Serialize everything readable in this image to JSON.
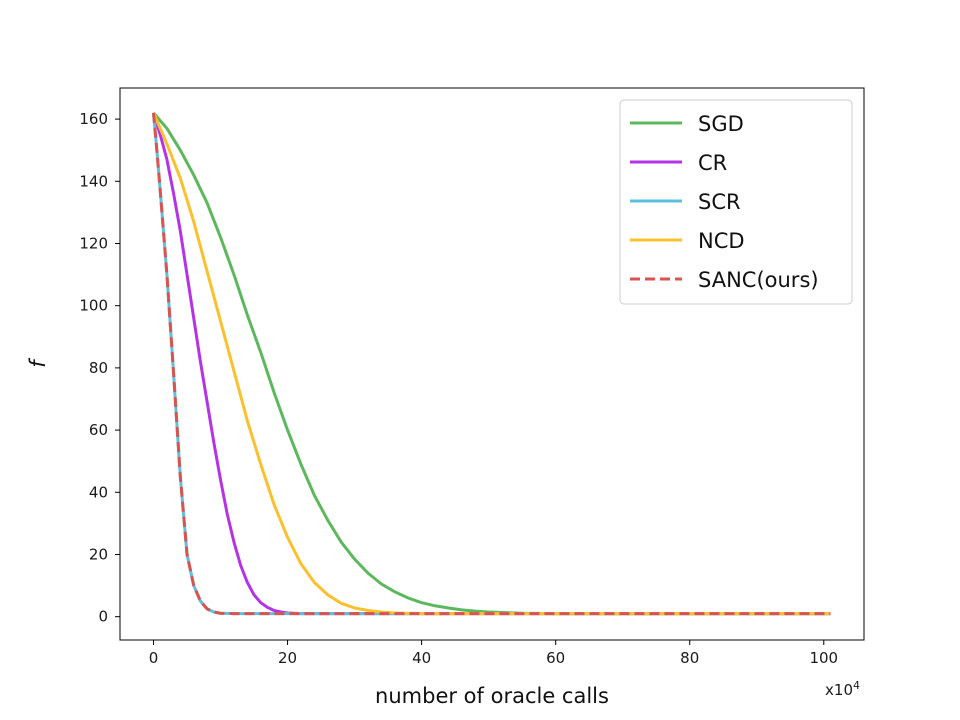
{
  "chart_data": {
    "type": "line",
    "title": "",
    "xlabel": "number of oracle calls",
    "ylabel": "f",
    "x_multiplier": "x10",
    "x_multiplier_exp": "4",
    "xlim": [
      -5,
      106
    ],
    "ylim": [
      -7.5,
      170
    ],
    "xticks": [
      0,
      20,
      40,
      60,
      80,
      100
    ],
    "yticks": [
      0,
      20,
      40,
      60,
      80,
      100,
      120,
      140,
      160
    ],
    "grid": false,
    "legend_position": "top-right",
    "series": [
      {
        "name": "SGD",
        "color": "#5cb85c",
        "dash": "solid",
        "points": [
          [
            0,
            162
          ],
          [
            2,
            157
          ],
          [
            4,
            150
          ],
          [
            6,
            142
          ],
          [
            8,
            133
          ],
          [
            10,
            122
          ],
          [
            12,
            110
          ],
          [
            14,
            97
          ],
          [
            16,
            85
          ],
          [
            18,
            72
          ],
          [
            20,
            60
          ],
          [
            22,
            49
          ],
          [
            24,
            39
          ],
          [
            26,
            31
          ],
          [
            28,
            24
          ],
          [
            30,
            18.5
          ],
          [
            32,
            14
          ],
          [
            34,
            10.5
          ],
          [
            36,
            8
          ],
          [
            38,
            6
          ],
          [
            40,
            4.5
          ],
          [
            42,
            3.5
          ],
          [
            44,
            2.8
          ],
          [
            46,
            2.2
          ],
          [
            48,
            1.8
          ],
          [
            50,
            1.5
          ],
          [
            55,
            1.1
          ],
          [
            60,
            1
          ],
          [
            80,
            1
          ],
          [
            101,
            1
          ]
        ]
      },
      {
        "name": "CR",
        "color": "#b533e6",
        "dash": "solid",
        "points": [
          [
            0,
            162
          ],
          [
            1,
            155
          ],
          [
            2,
            147
          ],
          [
            3,
            136
          ],
          [
            4,
            124
          ],
          [
            5,
            110
          ],
          [
            6,
            96
          ],
          [
            7,
            82
          ],
          [
            8,
            69
          ],
          [
            9,
            56
          ],
          [
            10,
            44
          ],
          [
            11,
            33
          ],
          [
            12,
            24
          ],
          [
            13,
            16.5
          ],
          [
            14,
            11
          ],
          [
            15,
            7
          ],
          [
            16,
            4.5
          ],
          [
            17,
            3
          ],
          [
            18,
            2
          ],
          [
            19,
            1.5
          ],
          [
            20,
            1.2
          ],
          [
            22,
            1
          ],
          [
            101,
            1
          ]
        ]
      },
      {
        "name": "SCR",
        "color": "#5bc0de",
        "dash": "solid",
        "points": [
          [
            0,
            162
          ],
          [
            0.5,
            150
          ],
          [
            1,
            137
          ],
          [
            2,
            110
          ],
          [
            3,
            78
          ],
          [
            4,
            45
          ],
          [
            5,
            20
          ],
          [
            6,
            10
          ],
          [
            7,
            5
          ],
          [
            8,
            2.5
          ],
          [
            9,
            1.5
          ],
          [
            10,
            1.1
          ],
          [
            12,
            1
          ],
          [
            101,
            1
          ]
        ]
      },
      {
        "name": "NCD",
        "color": "#fbc02d",
        "dash": "solid",
        "points": [
          [
            0,
            162
          ],
          [
            2,
            152
          ],
          [
            4,
            141
          ],
          [
            6,
            127
          ],
          [
            8,
            111
          ],
          [
            10,
            95
          ],
          [
            12,
            79
          ],
          [
            14,
            63
          ],
          [
            16,
            49
          ],
          [
            18,
            36
          ],
          [
            20,
            25.5
          ],
          [
            22,
            17
          ],
          [
            24,
            11
          ],
          [
            26,
            7
          ],
          [
            28,
            4.3
          ],
          [
            30,
            2.8
          ],
          [
            32,
            2
          ],
          [
            34,
            1.5
          ],
          [
            36,
            1.2
          ],
          [
            40,
            1
          ],
          [
            101,
            1
          ]
        ]
      },
      {
        "name": "SANC(ours)",
        "color": "#d9534f",
        "dash": "dashed",
        "points": [
          [
            0,
            162
          ],
          [
            0.5,
            150
          ],
          [
            1,
            137
          ],
          [
            2,
            110
          ],
          [
            3,
            78
          ],
          [
            4,
            45
          ],
          [
            5,
            20
          ],
          [
            6,
            10
          ],
          [
            7,
            5
          ],
          [
            8,
            2.5
          ],
          [
            9,
            1.5
          ],
          [
            10,
            1.1
          ],
          [
            12,
            1
          ],
          [
            101,
            1
          ]
        ]
      }
    ]
  }
}
